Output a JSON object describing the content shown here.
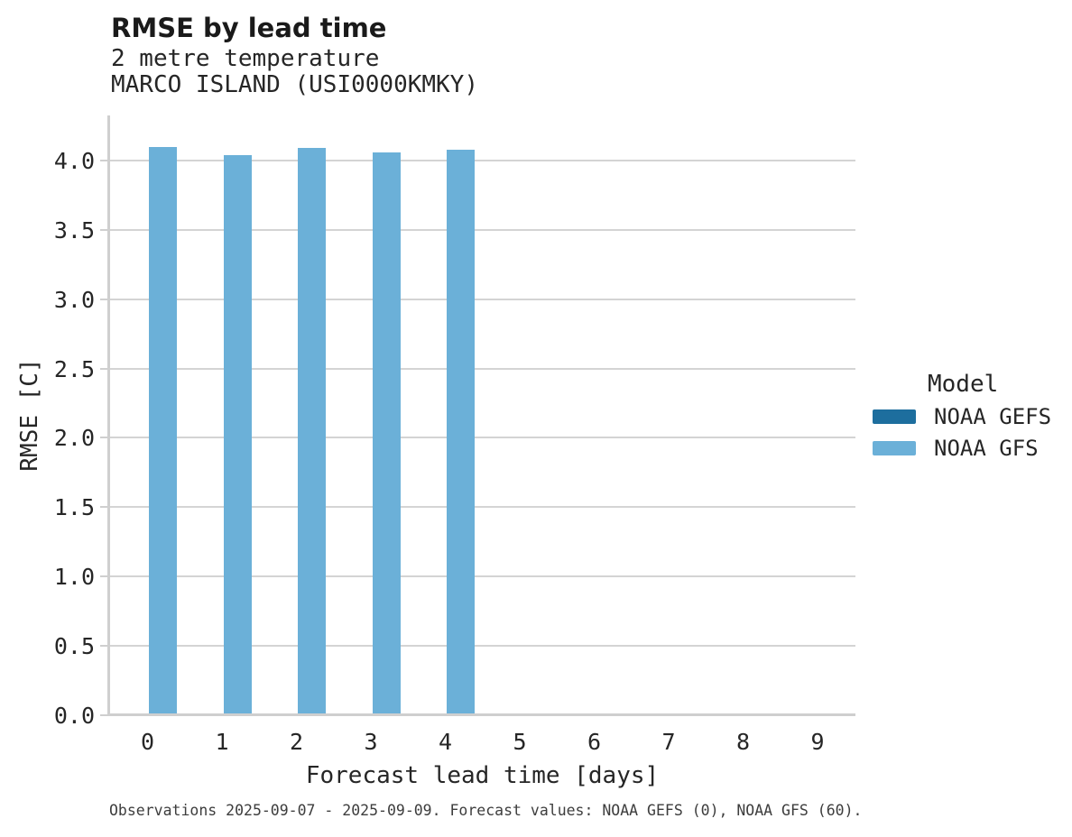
{
  "chart_data": {
    "type": "bar",
    "title": "RMSE by lead time",
    "subtitle_line1": "2 metre temperature",
    "subtitle_line2": "MARCO ISLAND (USI0000KMKY)",
    "xlabel": "Forecast lead time [days]",
    "ylabel": "RMSE [C]",
    "categories": [
      "0",
      "1",
      "2",
      "3",
      "4",
      "5",
      "6",
      "7",
      "8",
      "9"
    ],
    "y_ticks": [
      0.0,
      0.5,
      1.0,
      1.5,
      2.0,
      2.5,
      3.0,
      3.5,
      4.0
    ],
    "ylim": [
      0,
      4.325
    ],
    "grid": true,
    "legend": {
      "title": "Model",
      "position": "right"
    },
    "series": [
      {
        "name": "NOAA GEFS",
        "color": "#1d6e9e",
        "values": [
          null,
          null,
          null,
          null,
          null,
          null,
          null,
          null,
          null,
          null
        ]
      },
      {
        "name": "NOAA GFS",
        "color": "#6bb0d8",
        "values": [
          4.1,
          4.04,
          4.09,
          4.06,
          4.08,
          null,
          null,
          null,
          null,
          null
        ]
      }
    ],
    "caption": "Observations 2025-09-07 - 2025-09-09. Forecast values: NOAA GEFS (0), NOAA GFS (60)."
  },
  "colors": {
    "grid": "#d4d4d4",
    "axis_spine": "#cfcfcf",
    "text": "#262626"
  }
}
